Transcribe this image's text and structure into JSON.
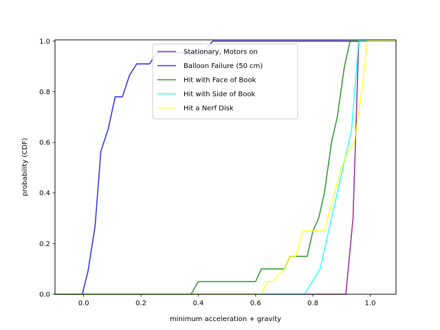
{
  "chart_data": {
    "type": "line",
    "title": "",
    "xlabel": "minimum acceleration + gravity",
    "ylabel": "probability (CDF)",
    "xlim": [
      -0.1,
      1.09
    ],
    "ylim": [
      0.0,
      1.005
    ],
    "xticks": [
      "0.0",
      "0.2",
      "0.4",
      "0.6",
      "0.8",
      "1.0"
    ],
    "yticks": [
      "0.0",
      "0.2",
      "0.4",
      "0.6",
      "0.8",
      "1.0"
    ],
    "grid": false,
    "legend_position": "top-center",
    "series": [
      {
        "name": "Stationary, Motors on",
        "color": "#800080",
        "points": [
          [
            -0.1,
            0.0
          ],
          [
            0.915,
            0.0
          ],
          [
            0.94,
            0.3
          ],
          [
            0.96,
            1.0
          ],
          [
            1.09,
            1.0
          ]
        ]
      },
      {
        "name": "Balloon Failure (50 cm)",
        "color": "#0000ee",
        "points": [
          [
            -0.1,
            0.0
          ],
          [
            -0.005,
            0.0
          ],
          [
            0.015,
            0.09
          ],
          [
            0.04,
            0.27
          ],
          [
            0.06,
            0.565
          ],
          [
            0.085,
            0.65
          ],
          [
            0.11,
            0.78
          ],
          [
            0.135,
            0.78
          ],
          [
            0.16,
            0.865
          ],
          [
            0.185,
            0.91
          ],
          [
            0.23,
            0.91
          ],
          [
            0.255,
            0.955
          ],
          [
            0.42,
            0.955
          ],
          [
            0.45,
            1.0
          ],
          [
            1.09,
            1.0
          ]
        ]
      },
      {
        "name": "Hit with Face of Book",
        "color": "#008000",
        "points": [
          [
            -0.1,
            0.0
          ],
          [
            0.375,
            0.0
          ],
          [
            0.4,
            0.05
          ],
          [
            0.6,
            0.05
          ],
          [
            0.62,
            0.1
          ],
          [
            0.7,
            0.1
          ],
          [
            0.72,
            0.15
          ],
          [
            0.78,
            0.15
          ],
          [
            0.8,
            0.25
          ],
          [
            0.82,
            0.3
          ],
          [
            0.84,
            0.4
          ],
          [
            0.865,
            0.6
          ],
          [
            0.885,
            0.7
          ],
          [
            0.91,
            0.9
          ],
          [
            0.93,
            1.0
          ],
          [
            1.09,
            1.0
          ]
        ]
      },
      {
        "name": "Hit with Side of Book",
        "color": "#00ffff",
        "points": [
          [
            -0.1,
            0.0
          ],
          [
            0.77,
            0.0
          ],
          [
            0.825,
            0.1
          ],
          [
            0.895,
            0.45
          ],
          [
            0.915,
            0.55
          ],
          [
            0.935,
            0.65
          ],
          [
            0.96,
            1.0
          ],
          [
            1.09,
            1.0
          ]
        ]
      },
      {
        "name": "Hit a Nerf Disk",
        "color": "#ffff00",
        "points": [
          [
            -0.1,
            0.0
          ],
          [
            0.62,
            0.0
          ],
          [
            0.64,
            0.05
          ],
          [
            0.66,
            0.05
          ],
          [
            0.7,
            0.1
          ],
          [
            0.72,
            0.15
          ],
          [
            0.74,
            0.15
          ],
          [
            0.765,
            0.25
          ],
          [
            0.84,
            0.25
          ],
          [
            0.875,
            0.4
          ],
          [
            0.9,
            0.5
          ],
          [
            0.92,
            0.56
          ],
          [
            0.945,
            0.6
          ],
          [
            0.97,
            0.8
          ],
          [
            0.99,
            1.0
          ],
          [
            1.09,
            1.0
          ]
        ]
      }
    ]
  }
}
